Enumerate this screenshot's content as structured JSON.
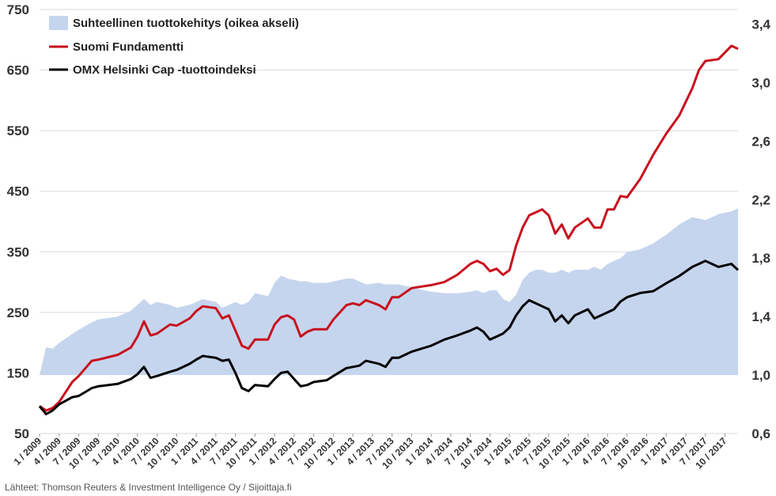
{
  "chart_data": {
    "type": "line",
    "title": "",
    "legend": {
      "placement": "top-left",
      "entries": [
        {
          "label": "Suhteellinen tuottokehitys (oikea akseli)",
          "color": "#c6d5ee",
          "kind": "area"
        },
        {
          "label": "Suomi Fundamentti",
          "color": "#c8101e",
          "kind": "line"
        },
        {
          "label": "OMX Helsinki Cap -tuottoindeksi",
          "color": "#000000",
          "kind": "line"
        }
      ]
    },
    "left_axis": {
      "min": 50,
      "max": 750,
      "ticks": [
        "750",
        "650",
        "550",
        "450",
        "350",
        "250",
        "150",
        "50"
      ]
    },
    "right_axis": {
      "min": 0.6,
      "max": 3.5,
      "ticks": [
        "3,4",
        "3,0",
        "2,6",
        "2,2",
        "1,8",
        "1,4",
        "1,0",
        "0,6"
      ]
    },
    "x_ticks": [
      "1 / 2009",
      "4 / 2009",
      "7 / 2009",
      "10 / 2009",
      "1 / 2010",
      "4 / 2010",
      "7 / 2010",
      "10 / 2010",
      "1 / 2011",
      "4 / 2011",
      "7 / 2011",
      "10 / 2011",
      "1 / 2012",
      "4 / 2012",
      "7 / 2012",
      "10 / 2012",
      "1 / 2013",
      "4 / 2013",
      "7 / 2013",
      "10 / 2013",
      "1 / 2014",
      "4 / 2014",
      "7 / 2014",
      "10 / 2014",
      "1 / 2015",
      "4 / 2015",
      "7 / 2015",
      "10 / 2015",
      "1 / 2016",
      "4 / 2016",
      "7 / 2016",
      "10 / 2016",
      "1 / 2017",
      "4 / 2017",
      "7 / 2017",
      "10 / 2017"
    ],
    "x_range": [
      "1 / 2009",
      "12 / 2017"
    ],
    "grid": "horizontal",
    "series": [
      {
        "name": "Suomi Fundamentti",
        "axis": "left",
        "color": "#c8101e",
        "x": [
          "1 / 2009",
          "2 / 2009",
          "3 / 2009",
          "4 / 2009",
          "6 / 2009",
          "7 / 2009",
          "9 / 2009",
          "10 / 2009",
          "1 / 2010",
          "3 / 2010",
          "4 / 2010",
          "5 / 2010",
          "6 / 2010",
          "7 / 2010",
          "9 / 2010",
          "10 / 2010",
          "12 / 2010",
          "1 / 2011",
          "2 / 2011",
          "4 / 2011",
          "5 / 2011",
          "6 / 2011",
          "7 / 2011",
          "8 / 2011",
          "9 / 2011",
          "10 / 2011",
          "12 / 2011",
          "1 / 2012",
          "2 / 2012",
          "3 / 2012",
          "4 / 2012",
          "5 / 2012",
          "6 / 2012",
          "7 / 2012",
          "9 / 2012",
          "10 / 2012",
          "12 / 2012",
          "1 / 2013",
          "2 / 2013",
          "3 / 2013",
          "5 / 2013",
          "6 / 2013",
          "7 / 2013",
          "8 / 2013",
          "10 / 2013",
          "1 / 2014",
          "3 / 2014",
          "5 / 2014",
          "7 / 2014",
          "8 / 2014",
          "9 / 2014",
          "10 / 2014",
          "11 / 2014",
          "12 / 2014",
          "1 / 2015",
          "2 / 2015",
          "3 / 2015",
          "4 / 2015",
          "5 / 2015",
          "6 / 2015",
          "7 / 2015",
          "8 / 2015",
          "9 / 2015",
          "10 / 2015",
          "11 / 2015",
          "1 / 2016",
          "2 / 2016",
          "3 / 2016",
          "4 / 2016",
          "5 / 2016",
          "6 / 2016",
          "7 / 2016",
          "9 / 2016",
          "11 / 2016",
          "1 / 2017",
          "3 / 2017",
          "5 / 2017",
          "6 / 2017",
          "7 / 2017",
          "9 / 2017",
          "11 / 2017",
          "12 / 2017"
        ],
        "values": [
          95,
          88,
          92,
          102,
          135,
          145,
          170,
          172,
          180,
          192,
          210,
          235,
          212,
          215,
          230,
          228,
          240,
          252,
          260,
          257,
          240,
          245,
          220,
          195,
          190,
          205,
          205,
          230,
          242,
          245,
          238,
          210,
          218,
          222,
          222,
          238,
          262,
          265,
          262,
          270,
          262,
          255,
          275,
          275,
          290,
          295,
          300,
          312,
          330,
          335,
          330,
          318,
          322,
          312,
          320,
          360,
          390,
          410,
          415,
          420,
          410,
          380,
          395,
          372,
          390,
          405,
          390,
          390,
          420,
          420,
          442,
          440,
          470,
          510,
          545,
          575,
          620,
          650,
          665,
          668,
          690,
          685
        ]
      },
      {
        "name": "OMX Helsinki Cap -tuottoindeksi",
        "axis": "left",
        "color": "#000000",
        "x": [
          "1 / 2009",
          "2 / 2009",
          "3 / 2009",
          "4 / 2009",
          "6 / 2009",
          "7 / 2009",
          "9 / 2009",
          "10 / 2009",
          "1 / 2010",
          "3 / 2010",
          "4 / 2010",
          "5 / 2010",
          "6 / 2010",
          "7 / 2010",
          "9 / 2010",
          "10 / 2010",
          "12 / 2010",
          "1 / 2011",
          "2 / 2011",
          "4 / 2011",
          "5 / 2011",
          "6 / 2011",
          "7 / 2011",
          "8 / 2011",
          "9 / 2011",
          "10 / 2011",
          "12 / 2011",
          "1 / 2012",
          "2 / 2012",
          "3 / 2012",
          "4 / 2012",
          "5 / 2012",
          "6 / 2012",
          "7 / 2012",
          "9 / 2012",
          "10 / 2012",
          "12 / 2012",
          "1 / 2013",
          "2 / 2013",
          "3 / 2013",
          "5 / 2013",
          "6 / 2013",
          "7 / 2013",
          "8 / 2013",
          "10 / 2013",
          "1 / 2014",
          "3 / 2014",
          "5 / 2014",
          "7 / 2014",
          "8 / 2014",
          "9 / 2014",
          "10 / 2014",
          "11 / 2014",
          "12 / 2014",
          "1 / 2015",
          "2 / 2015",
          "3 / 2015",
          "4 / 2015",
          "5 / 2015",
          "6 / 2015",
          "7 / 2015",
          "8 / 2015",
          "9 / 2015",
          "10 / 2015",
          "11 / 2015",
          "1 / 2016",
          "2 / 2016",
          "3 / 2016",
          "4 / 2016",
          "5 / 2016",
          "6 / 2016",
          "7 / 2016",
          "9 / 2016",
          "11 / 2016",
          "1 / 2017",
          "3 / 2017",
          "5 / 2017",
          "6 / 2017",
          "7 / 2017",
          "9 / 2017",
          "11 / 2017",
          "12 / 2017"
        ],
        "values": [
          95,
          82,
          88,
          98,
          110,
          112,
          125,
          128,
          132,
          140,
          148,
          160,
          142,
          145,
          152,
          155,
          165,
          172,
          178,
          175,
          170,
          172,
          150,
          125,
          120,
          130,
          128,
          140,
          150,
          152,
          140,
          128,
          130,
          135,
          138,
          145,
          158,
          160,
          162,
          170,
          165,
          160,
          175,
          175,
          185,
          195,
          205,
          212,
          220,
          225,
          218,
          205,
          210,
          215,
          225,
          245,
          260,
          270,
          265,
          260,
          255,
          235,
          245,
          232,
          245,
          255,
          240,
          245,
          250,
          255,
          268,
          275,
          282,
          285,
          298,
          310,
          325,
          330,
          335,
          325,
          330,
          320
        ]
      },
      {
        "name": "Suhteellinen tuottokehitys (oikea akseli)",
        "axis": "right",
        "type": "area",
        "color": "#c6d5ee",
        "x": [
          "1 / 2009",
          "2 / 2009",
          "3 / 2009",
          "4 / 2009",
          "6 / 2009",
          "7 / 2009",
          "9 / 2009",
          "10 / 2009",
          "1 / 2010",
          "3 / 2010",
          "4 / 2010",
          "5 / 2010",
          "6 / 2010",
          "7 / 2010",
          "9 / 2010",
          "10 / 2010",
          "12 / 2010",
          "1 / 2011",
          "2 / 2011",
          "4 / 2011",
          "5 / 2011",
          "6 / 2011",
          "7 / 2011",
          "8 / 2011",
          "9 / 2011",
          "10 / 2011",
          "12 / 2011",
          "1 / 2012",
          "2 / 2012",
          "3 / 2012",
          "4 / 2012",
          "5 / 2012",
          "6 / 2012",
          "7 / 2012",
          "9 / 2012",
          "10 / 2012",
          "12 / 2012",
          "1 / 2013",
          "2 / 2013",
          "3 / 2013",
          "5 / 2013",
          "6 / 2013",
          "7 / 2013",
          "8 / 2013",
          "10 / 2013",
          "1 / 2014",
          "3 / 2014",
          "5 / 2014",
          "7 / 2014",
          "8 / 2014",
          "9 / 2014",
          "10 / 2014",
          "11 / 2014",
          "12 / 2014",
          "1 / 2015",
          "2 / 2015",
          "3 / 2015",
          "4 / 2015",
          "5 / 2015",
          "6 / 2015",
          "7 / 2015",
          "8 / 2015",
          "9 / 2015",
          "10 / 2015",
          "11 / 2015",
          "1 / 2016",
          "2 / 2016",
          "3 / 2016",
          "4 / 2016",
          "5 / 2016",
          "6 / 2016",
          "7 / 2016",
          "9 / 2016",
          "11 / 2016",
          "1 / 2017",
          "3 / 2017",
          "5 / 2017",
          "6 / 2017",
          "7 / 2017",
          "9 / 2017",
          "11 / 2017",
          "12 / 2017"
        ],
        "values": [
          1.0,
          1.19,
          1.18,
          1.22,
          1.28,
          1.31,
          1.36,
          1.38,
          1.4,
          1.44,
          1.48,
          1.52,
          1.48,
          1.5,
          1.48,
          1.46,
          1.48,
          1.5,
          1.52,
          1.5,
          1.46,
          1.48,
          1.5,
          1.48,
          1.5,
          1.56,
          1.54,
          1.63,
          1.68,
          1.66,
          1.65,
          1.64,
          1.64,
          1.63,
          1.63,
          1.64,
          1.66,
          1.66,
          1.64,
          1.62,
          1.63,
          1.62,
          1.62,
          1.62,
          1.6,
          1.57,
          1.56,
          1.56,
          1.57,
          1.58,
          1.56,
          1.58,
          1.58,
          1.52,
          1.5,
          1.55,
          1.65,
          1.7,
          1.72,
          1.72,
          1.7,
          1.7,
          1.72,
          1.7,
          1.72,
          1.72,
          1.74,
          1.72,
          1.76,
          1.78,
          1.8,
          1.84,
          1.86,
          1.9,
          1.96,
          2.03,
          2.08,
          2.07,
          2.06,
          2.1,
          2.12,
          2.14
        ]
      }
    ],
    "source": "Lähteet: Thomson Reuters & Investment Intelligence Oy / Sijoittaja.fi"
  }
}
